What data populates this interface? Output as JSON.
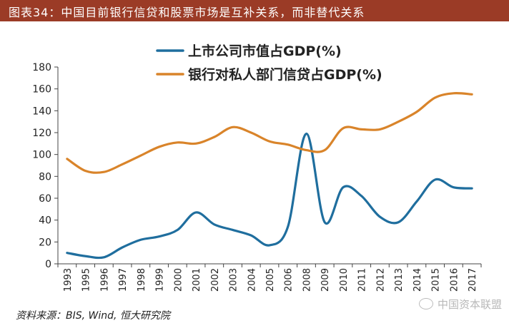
{
  "title": "图表34：中国目前银行信贷和股票市场是互补关系，而非替代关系",
  "source": "资料来源：BIS, Wind, 恒大研究院",
  "watermark": "中国资本联盟",
  "colors": {
    "title_bg": "#9b3b26",
    "series_1": "#1f6e9e",
    "series_2": "#d9842a"
  },
  "chart_data": {
    "type": "line",
    "x": [
      "1993",
      "1995",
      "1996",
      "1997",
      "1998",
      "1999",
      "2000",
      "2001",
      "2002",
      "2003",
      "2004",
      "2005",
      "2006",
      "2008",
      "2009",
      "2010",
      "2011",
      "2012",
      "2013",
      "2014",
      "2015",
      "2016",
      "2017"
    ],
    "series": [
      {
        "name": "上市公司市值占GDP(%)",
        "values": [
          10,
          7,
          6,
          15,
          22,
          25,
          31,
          47,
          36,
          31,
          26,
          17,
          34,
          119,
          38,
          70,
          62,
          43,
          38,
          57,
          77,
          70,
          69
        ]
      },
      {
        "name": "银行对私人部门信贷占GDP(%)",
        "values": [
          96,
          85,
          84,
          91,
          99,
          107,
          111,
          110,
          116,
          125,
          120,
          112,
          109,
          104,
          104,
          124,
          123,
          123,
          130,
          139,
          152,
          156,
          155
        ]
      }
    ],
    "ylim": [
      0,
      180
    ],
    "yticks": [
      0,
      20,
      40,
      60,
      80,
      100,
      120,
      140,
      160,
      180
    ],
    "legend_position": "top-left",
    "grid": false
  }
}
